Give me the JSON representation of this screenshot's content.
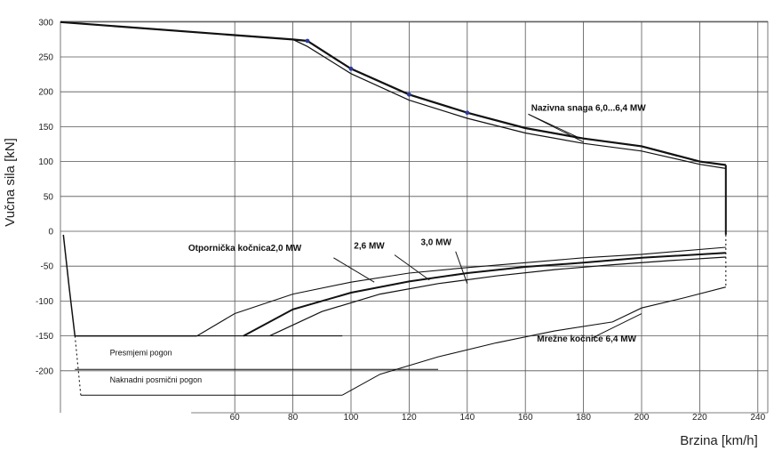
{
  "chart_data": {
    "type": "line",
    "xlabel": "Brzina [km/h]",
    "ylabel": "Vučna sila [kN]",
    "xlim": [
      0,
      240
    ],
    "ylim": [
      -240,
      300
    ],
    "x_ticks": [
      "60",
      "80",
      "100",
      "120",
      "140",
      "160",
      "180",
      "200",
      "220",
      "240"
    ],
    "x_tick_values": [
      60,
      80,
      100,
      120,
      140,
      160,
      180,
      200,
      220,
      240
    ],
    "y_ticks": [
      "300",
      "250",
      "200",
      "150",
      "100",
      "50",
      "0",
      "-50",
      "-100",
      "-150",
      "-200"
    ],
    "y_tick_values": [
      300,
      250,
      200,
      150,
      100,
      50,
      0,
      -50,
      -100,
      -150,
      -200
    ],
    "grid": true,
    "series": [
      {
        "id": "traction-upper",
        "width": 2.2,
        "x": [
          0,
          80,
          85,
          100,
          120,
          140,
          160,
          180,
          200,
          220,
          229
        ],
        "y": [
          300,
          275,
          273,
          233,
          196,
          170,
          148,
          133,
          122,
          100,
          95
        ]
      },
      {
        "id": "traction-lower",
        "width": 1.2,
        "x": [
          0,
          80,
          85,
          100,
          120,
          140,
          160,
          180,
          200,
          220,
          229
        ],
        "y": [
          300,
          275,
          265,
          226,
          188,
          162,
          141,
          126,
          115,
          96,
          90
        ]
      },
      {
        "id": "traction-end",
        "width": 2,
        "x": [
          229,
          229
        ],
        "y": [
          95,
          -5
        ]
      },
      {
        "id": "reverse-drive",
        "width": 1.5,
        "x": [
          1,
          3,
          5,
          47
        ],
        "y": [
          -5,
          -80,
          -150,
          -150
        ]
      },
      {
        "id": "rheostatic-2-0",
        "width": 1.1,
        "x": [
          47,
          60,
          80,
          100,
          120,
          140,
          160,
          180,
          200,
          229
        ],
        "y": [
          -150,
          -118,
          -90,
          -73,
          -60,
          -52,
          -45,
          -38,
          -33,
          -23
        ]
      },
      {
        "id": "rheostatic-2-6",
        "width": 2,
        "x": [
          63,
          80,
          100,
          120,
          140,
          160,
          180,
          200,
          229
        ],
        "y": [
          -150,
          -112,
          -88,
          -72,
          -60,
          -51,
          -45,
          -38,
          -31
        ]
      },
      {
        "id": "rheostatic-3-0",
        "width": 1.2,
        "x": [
          72,
          90,
          110,
          130,
          150,
          170,
          190,
          210,
          229
        ],
        "y": [
          -150,
          -115,
          -90,
          -75,
          -64,
          -55,
          -48,
          -42,
          -37
        ]
      },
      {
        "id": "regenerative-6-4",
        "width": 1.1,
        "x": [
          97,
          110,
          130,
          150,
          170,
          190,
          200,
          215,
          229
        ],
        "y": [
          -235,
          -205,
          -180,
          -160,
          -143,
          -130,
          -110,
          -95,
          -80
        ]
      },
      {
        "id": "base-150",
        "width": 1.1,
        "x": [
          5,
          97
        ],
        "y": [
          -150,
          -150
        ]
      },
      {
        "id": "base-200",
        "width": 1,
        "x": [
          5,
          130
        ],
        "y": [
          -198,
          -198
        ]
      },
      {
        "id": "base-235",
        "width": 1,
        "x": [
          7,
          97
        ],
        "y": [
          -235,
          -235
        ]
      }
    ],
    "markers": {
      "x": [
        85,
        100,
        120,
        140
      ],
      "y": [
        273,
        233,
        196,
        170
      ],
      "color": "#2b3a9c"
    },
    "annotations": [
      {
        "id": "annot-nominal",
        "text": "Nazivna snaga 6,0...6,4 MW",
        "x": 162,
        "y": 173,
        "bold": true
      },
      {
        "id": "annot-rheostatic-2-0",
        "text": "Otpornička kočnica2,0 MW",
        "x": 44,
        "y": -28,
        "bold": true
      },
      {
        "id": "annot-2-6",
        "text": "2,6 MW",
        "x": 101,
        "y": -25,
        "bold": true
      },
      {
        "id": "annot-3-0",
        "text": "3,0 MW",
        "x": 124,
        "y": -20,
        "bold": true
      },
      {
        "id": "annot-regenerative",
        "text": "Mrežne kočnice 6,4 MW",
        "x": 164,
        "y": -158,
        "bold": true
      },
      {
        "id": "annot-reverse",
        "text": "Presmjemi pogon",
        "x": 17,
        "y": -178,
        "bold": false
      },
      {
        "id": "annot-auxiliary",
        "text": "Naknadni posmični pogon",
        "x": 17,
        "y": -217,
        "bold": false
      }
    ],
    "colors": {
      "line": "#111111",
      "grid": "#555555",
      "marker": "#2b3a9c"
    }
  }
}
